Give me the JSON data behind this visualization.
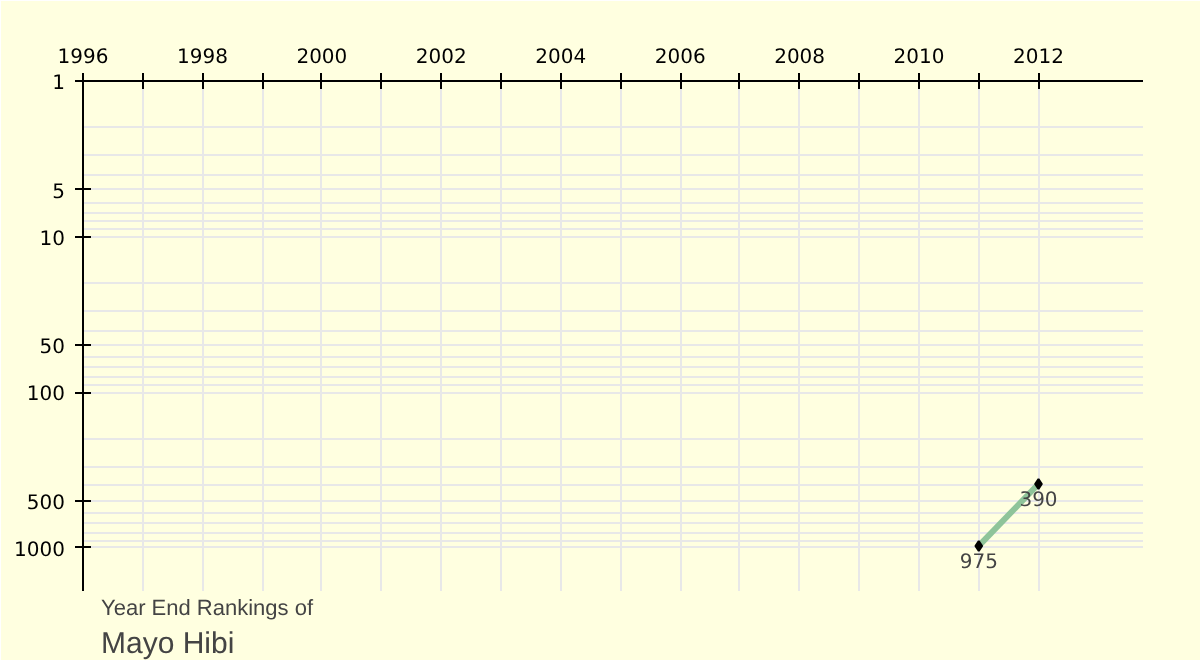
{
  "chart_data": {
    "type": "line",
    "title": "Year End Rankings of",
    "subtitle": "Mayo Hibi",
    "x": [
      2011,
      2012
    ],
    "series": [
      {
        "color": "#8fc49a",
        "values": [
          975,
          390
        ]
      }
    ],
    "xlim": [
      1996,
      2013.75
    ],
    "xticks": [
      1996,
      {
        "value": 1997,
        "label": null
      },
      1998,
      {
        "value": 1999,
        "label": null
      },
      2000,
      {
        "value": 2001,
        "label": null
      },
      2002,
      {
        "value": 2003,
        "label": null
      },
      2004,
      {
        "value": 2005,
        "label": null
      },
      2006,
      {
        "value": 2007,
        "label": null
      },
      2008,
      {
        "value": 2009,
        "label": null
      },
      2010,
      {
        "value": 2011,
        "label": null
      },
      2012
    ],
    "ylim": [
      1900,
      1
    ],
    "yticks": [
      1,
      5,
      10,
      50,
      100,
      500,
      1000
    ],
    "log": "y",
    "grid": true,
    "marker": "diamond",
    "data_labels": true
  }
}
